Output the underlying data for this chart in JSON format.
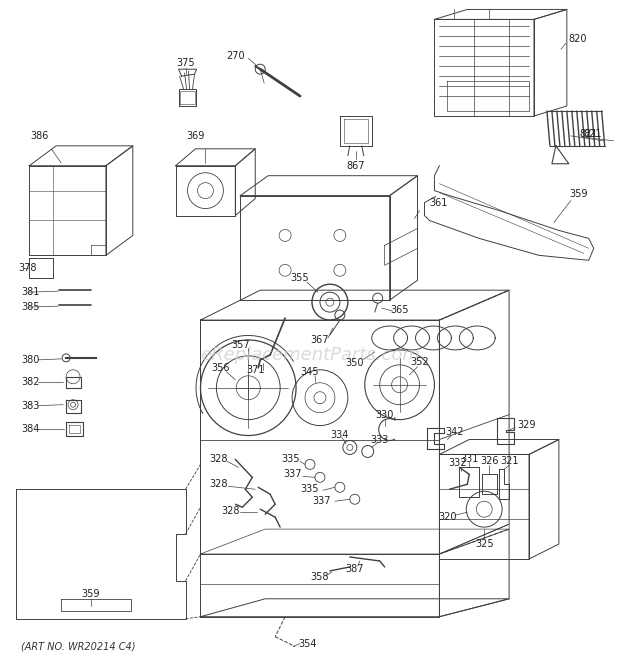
{
  "art_no": "(ART NO. WR20214 C4)",
  "bg": "#f8f8f8",
  "lc": "#404040",
  "tc": "#222222",
  "watermark": "eReplacementParts.com",
  "fig_w": 6.2,
  "fig_h": 6.61,
  "dpi": 100
}
